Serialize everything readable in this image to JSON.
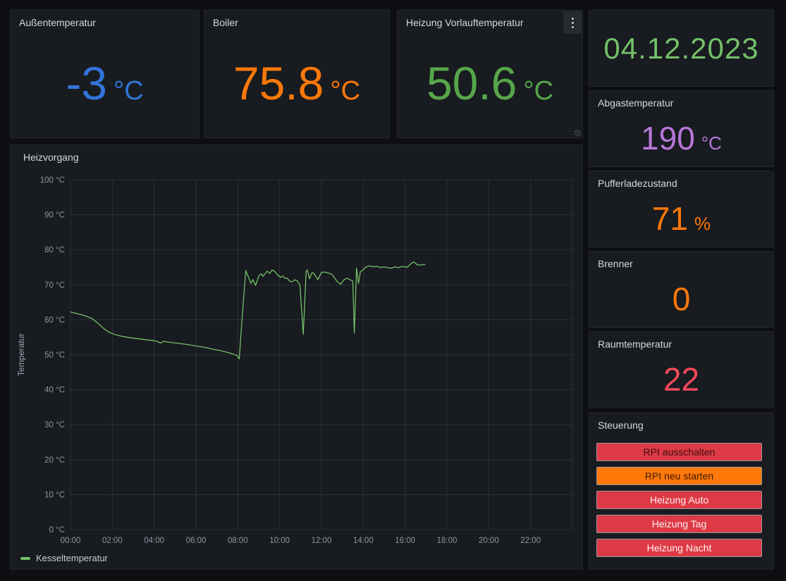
{
  "panels": {
    "aussentemperatur": {
      "title": "Außentemperatur",
      "value": "-3",
      "unit": "°C",
      "color": "#3274D9"
    },
    "boiler": {
      "title": "Boiler",
      "value": "75.8",
      "unit": "°C",
      "color": "#FF780A"
    },
    "vorlauftemperatur": {
      "title": "Heizung Vorlauftemperatur",
      "value": "50.6",
      "unit": "°C",
      "color": "#56A64B"
    },
    "datum": {
      "value": "04.12.2023",
      "color": "#73BF69"
    },
    "abgastemperatur": {
      "title": "Abgastemperatur",
      "value": "190",
      "unit": "°C",
      "color": "#B877D9"
    },
    "pufferladezustand": {
      "title": "Pufferladezustand",
      "value": "71",
      "unit": "%",
      "color": "#FF780A"
    },
    "brenner": {
      "title": "Brenner",
      "value": "0",
      "unit": "",
      "color": "#FF780A"
    },
    "raumtemperatur": {
      "title": "Raumtemperatur",
      "value": "22",
      "unit": "",
      "color": "#F2495C"
    },
    "steuerung": {
      "title": "Steuerung",
      "buttons": [
        {
          "label": "RPI ausschalten",
          "bg": "#DD3A45",
          "fg": "#3f0d10"
        },
        {
          "label": "RPI neu starten",
          "bg": "#FF780A",
          "fg": "#3d1c00"
        },
        {
          "label": "Heizung Auto",
          "bg": "#DD3A45",
          "fg": "#fff0f0"
        },
        {
          "label": "Heizung Tag",
          "bg": "#DD3A45",
          "fg": "#fff0f0"
        },
        {
          "label": "Heizung Nacht",
          "bg": "#DD3A45",
          "fg": "#fff0f0"
        }
      ]
    }
  },
  "chart_data": {
    "type": "line",
    "title": "Heizvorgang",
    "ylabel": "Temperatur",
    "y_unit": "°C",
    "ylim": [
      0,
      100
    ],
    "y_ticks": [
      0,
      10,
      20,
      30,
      40,
      50,
      60,
      70,
      80,
      90,
      100
    ],
    "x_range_hours": [
      0,
      24
    ],
    "x_grid_hours": [
      0,
      2,
      4,
      6,
      8,
      10,
      12,
      14,
      16,
      18,
      20,
      22,
      24
    ],
    "x_ticks": [
      {
        "hour": 0,
        "label": "00:00"
      },
      {
        "hour": 2,
        "label": "02:00"
      },
      {
        "hour": 4,
        "label": "04:00"
      },
      {
        "hour": 6,
        "label": "06:00"
      },
      {
        "hour": 8,
        "label": "08:00"
      },
      {
        "hour": 10,
        "label": "10:00"
      },
      {
        "hour": 12,
        "label": "12:00"
      },
      {
        "hour": 14,
        "label": "14:00"
      },
      {
        "hour": 16,
        "label": "16:00"
      },
      {
        "hour": 18,
        "label": "18:00"
      },
      {
        "hour": 20,
        "label": "20:00"
      },
      {
        "hour": 22,
        "label": "22:00"
      }
    ],
    "grid": true,
    "legend_position": "bottom-left",
    "series": [
      {
        "name": "Kesseltemperatur",
        "color": "#73BF69",
        "points": [
          [
            0,
            62.2
          ],
          [
            0.35,
            61.7
          ],
          [
            0.7,
            61.1
          ],
          [
            1,
            60.4
          ],
          [
            1.1,
            60
          ],
          [
            1.35,
            58.8
          ],
          [
            1.6,
            57.4
          ],
          [
            1.85,
            56.4
          ],
          [
            2.15,
            55.7
          ],
          [
            2.5,
            55.2
          ],
          [
            2.9,
            54.8
          ],
          [
            3.3,
            54.5
          ],
          [
            3.7,
            54.2
          ],
          [
            4,
            54
          ],
          [
            4.15,
            53.8
          ],
          [
            4.3,
            53.3
          ],
          [
            4.45,
            53.8
          ],
          [
            4.8,
            53.5
          ],
          [
            5.2,
            53.2
          ],
          [
            5.6,
            52.9
          ],
          [
            6,
            52.5
          ],
          [
            6.4,
            52.1
          ],
          [
            6.8,
            51.6
          ],
          [
            7.2,
            51.1
          ],
          [
            7.6,
            50.5
          ],
          [
            7.95,
            49.8
          ],
          [
            8.07,
            48.8
          ],
          [
            8.2,
            60
          ],
          [
            8.38,
            74.1
          ],
          [
            8.49,
            72.4
          ],
          [
            8.63,
            70.4
          ],
          [
            8.72,
            71.5
          ],
          [
            8.85,
            69.8
          ],
          [
            9.02,
            72.7
          ],
          [
            9.13,
            73.1
          ],
          [
            9.2,
            72.4
          ],
          [
            9.41,
            73.9
          ],
          [
            9.52,
            73.2
          ],
          [
            9.64,
            74.2
          ],
          [
            9.75,
            73.9
          ],
          [
            9.92,
            72.7
          ],
          [
            10.04,
            72.1
          ],
          [
            10.15,
            72.5
          ],
          [
            10.26,
            71.8
          ],
          [
            10.37,
            71.9
          ],
          [
            10.48,
            71
          ],
          [
            10.6,
            70.8
          ],
          [
            10.71,
            71.4
          ],
          [
            10.82,
            71.2
          ],
          [
            10.97,
            70
          ],
          [
            11.13,
            55.8
          ],
          [
            11.27,
            73.9
          ],
          [
            11.33,
            74.2
          ],
          [
            11.43,
            71.7
          ],
          [
            11.55,
            73.5
          ],
          [
            11.66,
            73
          ],
          [
            11.8,
            71.7
          ],
          [
            11.83,
            71.5
          ],
          [
            12,
            73.5
          ],
          [
            12.17,
            73.6
          ],
          [
            12.34,
            73.3
          ],
          [
            12.5,
            73
          ],
          [
            12.62,
            72
          ],
          [
            12.73,
            71
          ],
          [
            12.92,
            70.1
          ],
          [
            13.07,
            71.4
          ],
          [
            13.21,
            71.9
          ],
          [
            13.35,
            71.5
          ],
          [
            13.5,
            71
          ],
          [
            13.57,
            56.2
          ],
          [
            13.68,
            74.7
          ],
          [
            13.77,
            70.4
          ],
          [
            13.86,
            73.7
          ],
          [
            13.96,
            74.1
          ],
          [
            14.13,
            75.1
          ],
          [
            14.3,
            75.4
          ],
          [
            14.47,
            75.1
          ],
          [
            14.64,
            75.3
          ],
          [
            14.81,
            74.9
          ],
          [
            14.98,
            75.1
          ],
          [
            15.15,
            74.9
          ],
          [
            15.35,
            74.7
          ],
          [
            15.5,
            75.1
          ],
          [
            15.66,
            74.9
          ],
          [
            15.88,
            75.2
          ],
          [
            16.1,
            75
          ],
          [
            16.32,
            76.2
          ],
          [
            16.43,
            76.5
          ],
          [
            16.6,
            75.6
          ],
          [
            16.8,
            75.7
          ],
          [
            16.96,
            75.8
          ]
        ]
      }
    ]
  }
}
